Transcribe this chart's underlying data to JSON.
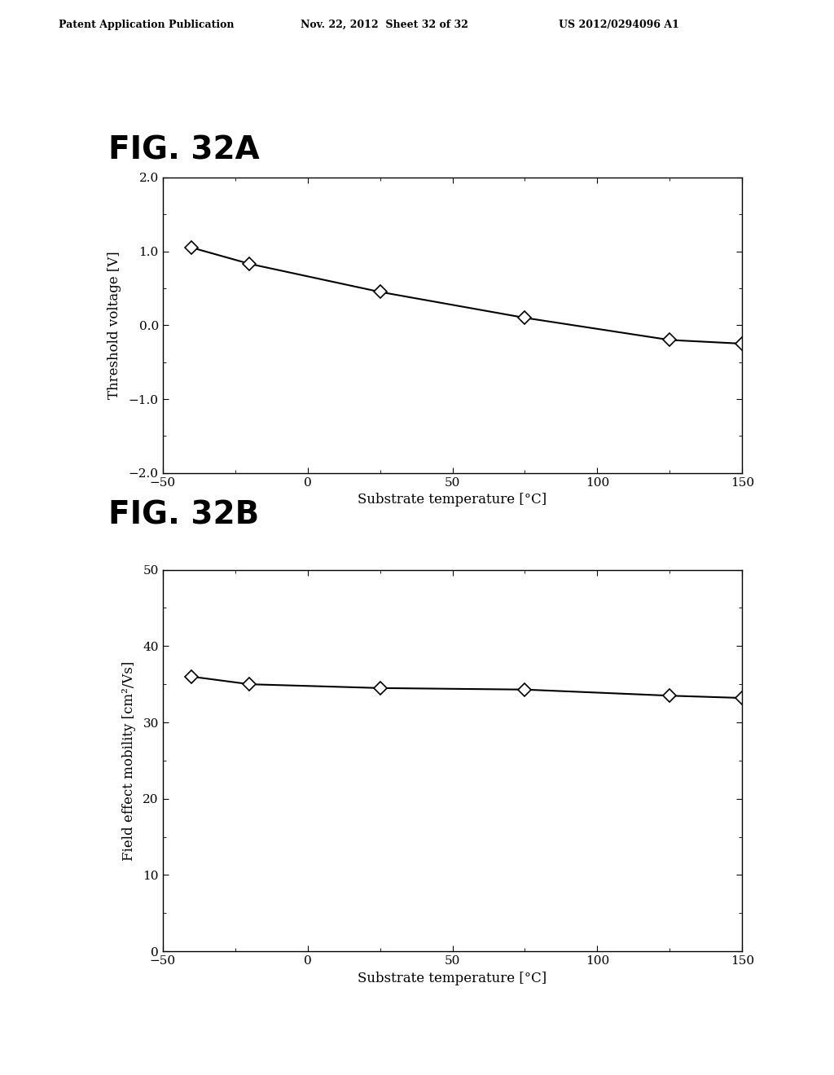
{
  "header_left": "Patent Application Publication",
  "header_mid": "Nov. 22, 2012  Sheet 32 of 32",
  "header_right": "US 2012/0294096 A1",
  "fig_a_label": "FIG. 32A",
  "fig_b_label": "FIG. 32B",
  "plot_a": {
    "x": [
      -40,
      -20,
      25,
      75,
      125,
      150
    ],
    "y": [
      1.05,
      0.83,
      0.45,
      0.1,
      -0.2,
      -0.25
    ],
    "xlabel": "Substrate temperature [°C]",
    "ylabel": "Threshold voltage [V]",
    "xlim": [
      -50,
      150
    ],
    "ylim": [
      -2.0,
      2.0
    ],
    "xticks": [
      -50,
      0,
      50,
      100,
      150
    ],
    "yticks": [
      -2.0,
      -1.0,
      0.0,
      1.0,
      2.0
    ],
    "yticklabels": [
      "−2.0",
      "−1.0",
      "0.0",
      "1.0",
      "2.0"
    ],
    "xticklabels": [
      "−50",
      "0",
      "50",
      "100",
      "150"
    ]
  },
  "plot_b": {
    "x": [
      -40,
      -20,
      25,
      75,
      125,
      150
    ],
    "y": [
      36.0,
      35.0,
      34.5,
      34.3,
      33.5,
      33.2
    ],
    "xlabel": "Substrate temperature [°C]",
    "ylabel": "Field effect mobility [cm²/Vs]",
    "xlim": [
      -50,
      150
    ],
    "ylim": [
      0,
      50
    ],
    "xticks": [
      -50,
      0,
      50,
      100,
      150
    ],
    "yticks": [
      0,
      10,
      20,
      30,
      40,
      50
    ],
    "yticklabels": [
      "0",
      "10",
      "20",
      "30",
      "40",
      "50"
    ],
    "xticklabels": [
      "−50",
      "0",
      "50",
      "100",
      "150"
    ]
  },
  "bg_color": "#ffffff",
  "line_color": "#000000",
  "marker_color": "#ffffff",
  "marker_edge_color": "#000000",
  "header_fontsize": 9,
  "fig_label_fontsize": 28,
  "axis_label_fontsize": 12,
  "tick_fontsize": 11
}
